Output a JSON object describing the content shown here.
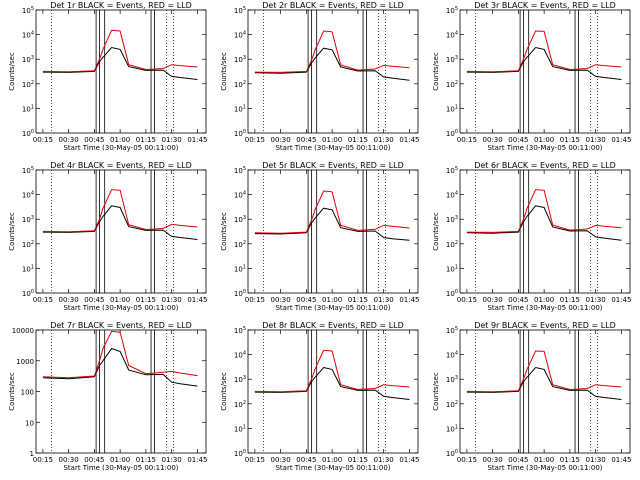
{
  "figure": {
    "xlabel": "Start Time (30-May-05 00:11:00)",
    "ylabel": "Counts/sec",
    "x_tick_labels": [
      "00:15",
      "00:30",
      "00:45",
      "01:00",
      "01:15",
      "01:30",
      "01:45"
    ],
    "event_line_color": "#000000",
    "lld_line_color": "#e00000"
  },
  "chart_data": [
    {
      "type": "line",
      "title": "Det 1r BLACK = Events, RED = LLD",
      "y_scale": "log",
      "ylim": [
        1,
        100000
      ],
      "y_tick_labels": [
        "10^0",
        "10^1",
        "10^2",
        "10^3",
        "10^4",
        "10^5"
      ],
      "xlim": [
        "00:11",
        "01:50"
      ],
      "x": [
        "00:15",
        "00:30",
        "00:45",
        "00:48",
        "00:50",
        "00:55",
        "01:00",
        "01:05",
        "01:15",
        "01:25",
        "01:30",
        "01:35",
        "01:45"
      ],
      "series": [
        {
          "name": "Events",
          "values": [
            300,
            290,
            320,
            800,
            1200,
            3000,
            2500,
            500,
            350,
            360,
            200,
            180,
            150
          ]
        },
        {
          "name": "LLD",
          "values": [
            320,
            310,
            340,
            1000,
            2500,
            15000,
            14000,
            600,
            380,
            420,
            600,
            550,
            480
          ]
        }
      ]
    },
    {
      "type": "line",
      "title": "Det 2r BLACK = Events, RED = LLD",
      "y_scale": "log",
      "ylim": [
        1,
        100000
      ],
      "y_tick_labels": [
        "10^0",
        "10^1",
        "10^2",
        "10^3",
        "10^4",
        "10^5"
      ],
      "xlim": [
        "00:11",
        "01:50"
      ],
      "x": [
        "00:15",
        "00:30",
        "00:45",
        "00:48",
        "00:50",
        "00:55",
        "01:00",
        "01:05",
        "01:15",
        "01:25",
        "01:30",
        "01:35",
        "01:45"
      ],
      "series": [
        {
          "name": "Events",
          "values": [
            280,
            270,
            300,
            700,
            1100,
            2800,
            2400,
            480,
            330,
            340,
            190,
            170,
            140
          ]
        },
        {
          "name": "LLD",
          "values": [
            300,
            290,
            320,
            900,
            2300,
            14000,
            13000,
            580,
            360,
            400,
            560,
            520,
            450
          ]
        }
      ]
    },
    {
      "type": "line",
      "title": "Det 3r BLACK = Events, RED = LLD",
      "y_scale": "log",
      "ylim": [
        1,
        100000
      ],
      "y_tick_labels": [
        "10^0",
        "10^1",
        "10^2",
        "10^3",
        "10^4",
        "10^5"
      ],
      "xlim": [
        "00:11",
        "01:50"
      ],
      "x": [
        "00:15",
        "00:30",
        "00:45",
        "00:48",
        "00:50",
        "00:55",
        "01:00",
        "01:05",
        "01:15",
        "01:25",
        "01:30",
        "01:35",
        "01:45"
      ],
      "series": [
        {
          "name": "Events",
          "values": [
            300,
            290,
            320,
            800,
            1200,
            3000,
            2500,
            500,
            350,
            360,
            200,
            180,
            150
          ]
        },
        {
          "name": "LLD",
          "values": [
            320,
            310,
            340,
            1000,
            2500,
            14000,
            13500,
            600,
            380,
            420,
            600,
            550,
            480
          ]
        }
      ]
    },
    {
      "type": "line",
      "title": "Det 4r BLACK = Events, RED = LLD",
      "y_scale": "log",
      "ylim": [
        1,
        100000
      ],
      "y_tick_labels": [
        "10^0",
        "10^1",
        "10^2",
        "10^3",
        "10^4",
        "10^5"
      ],
      "xlim": [
        "00:11",
        "01:50"
      ],
      "x": [
        "00:15",
        "00:30",
        "00:45",
        "00:48",
        "00:50",
        "00:55",
        "01:00",
        "01:05",
        "01:15",
        "01:25",
        "01:30",
        "01:35",
        "01:45"
      ],
      "series": [
        {
          "name": "Events",
          "values": [
            300,
            290,
            320,
            800,
            1300,
            3500,
            3000,
            500,
            350,
            360,
            200,
            180,
            150
          ]
        },
        {
          "name": "LLD",
          "values": [
            320,
            310,
            340,
            1000,
            2800,
            16000,
            15000,
            600,
            380,
            420,
            620,
            560,
            480
          ]
        }
      ]
    },
    {
      "type": "line",
      "title": "Det 5r BLACK = Events, RED = LLD",
      "y_scale": "log",
      "ylim": [
        1,
        100000
      ],
      "y_tick_labels": [
        "10^0",
        "10^1",
        "10^2",
        "10^3",
        "10^4",
        "10^5"
      ],
      "xlim": [
        "00:11",
        "01:50"
      ],
      "x": [
        "00:15",
        "00:30",
        "00:45",
        "00:48",
        "00:50",
        "00:55",
        "01:00",
        "01:05",
        "01:15",
        "01:25",
        "01:30",
        "01:35",
        "01:45"
      ],
      "series": [
        {
          "name": "Events",
          "values": [
            260,
            250,
            280,
            700,
            1100,
            2800,
            2400,
            450,
            320,
            330,
            180,
            160,
            140
          ]
        },
        {
          "name": "LLD",
          "values": [
            280,
            270,
            300,
            900,
            2400,
            14000,
            13000,
            560,
            350,
            390,
            560,
            520,
            440
          ]
        }
      ]
    },
    {
      "type": "line",
      "title": "Det 6r BLACK = Events, RED = LLD",
      "y_scale": "log",
      "ylim": [
        1,
        100000
      ],
      "y_tick_labels": [
        "10^0",
        "10^1",
        "10^2",
        "10^3",
        "10^4",
        "10^5"
      ],
      "xlim": [
        "00:11",
        "01:50"
      ],
      "x": [
        "00:15",
        "00:30",
        "00:45",
        "00:48",
        "00:50",
        "00:55",
        "01:00",
        "01:05",
        "01:15",
        "01:25",
        "01:30",
        "01:35",
        "01:45"
      ],
      "series": [
        {
          "name": "Events",
          "values": [
            280,
            270,
            300,
            800,
            1300,
            3500,
            3000,
            480,
            330,
            340,
            190,
            170,
            140
          ]
        },
        {
          "name": "LLD",
          "values": [
            300,
            290,
            320,
            1000,
            2700,
            16000,
            15000,
            580,
            360,
            400,
            560,
            520,
            450
          ]
        }
      ]
    },
    {
      "type": "line",
      "title": "Det 7r BLACK = Events, RED = LLD",
      "y_scale": "log",
      "ylim": [
        1,
        10000
      ],
      "y_tick_labels": [
        "1",
        "10",
        "100",
        "1000",
        "10000"
      ],
      "xlim": [
        "00:11",
        "01:50"
      ],
      "x": [
        "00:15",
        "00:30",
        "00:45",
        "00:48",
        "00:50",
        "00:55",
        "01:00",
        "01:05",
        "01:15",
        "01:25",
        "01:30",
        "01:35",
        "01:45"
      ],
      "series": [
        {
          "name": "Events",
          "values": [
            280,
            260,
            300,
            700,
            1000,
            2500,
            2000,
            500,
            350,
            360,
            200,
            180,
            150
          ]
        },
        {
          "name": "LLD",
          "values": [
            300,
            280,
            320,
            1000,
            2500,
            9000,
            8500,
            700,
            380,
            420,
            450,
            400,
            330
          ]
        }
      ]
    },
    {
      "type": "line",
      "title": "Det 8r BLACK = Events, RED = LLD",
      "y_scale": "log",
      "ylim": [
        1,
        100000
      ],
      "y_tick_labels": [
        "10^0",
        "10^1",
        "10^2",
        "10^3",
        "10^4",
        "10^5"
      ],
      "xlim": [
        "00:11",
        "01:50"
      ],
      "x": [
        "00:15",
        "00:30",
        "00:45",
        "00:48",
        "00:50",
        "00:55",
        "01:00",
        "01:05",
        "01:15",
        "01:25",
        "01:30",
        "01:35",
        "01:45"
      ],
      "series": [
        {
          "name": "Events",
          "values": [
            300,
            290,
            320,
            800,
            1200,
            3000,
            2500,
            500,
            350,
            360,
            200,
            180,
            150
          ]
        },
        {
          "name": "LLD",
          "values": [
            320,
            310,
            340,
            1000,
            2500,
            15000,
            14000,
            600,
            380,
            420,
            600,
            550,
            480
          ]
        }
      ]
    },
    {
      "type": "line",
      "title": "Det 9r BLACK = Events, RED = LLD",
      "y_scale": "log",
      "ylim": [
        1,
        100000
      ],
      "y_tick_labels": [
        "10^0",
        "10^1",
        "10^2",
        "10^3",
        "10^4",
        "10^5"
      ],
      "xlim": [
        "00:11",
        "01:50"
      ],
      "x": [
        "00:15",
        "00:30",
        "00:45",
        "00:48",
        "00:50",
        "00:55",
        "01:00",
        "01:05",
        "01:15",
        "01:25",
        "01:30",
        "01:35",
        "01:45"
      ],
      "series": [
        {
          "name": "Events",
          "values": [
            300,
            290,
            320,
            800,
            1200,
            3000,
            2500,
            500,
            350,
            360,
            200,
            180,
            150
          ]
        },
        {
          "name": "LLD",
          "values": [
            320,
            310,
            340,
            1000,
            2500,
            14000,
            13500,
            600,
            380,
            420,
            600,
            550,
            480
          ]
        }
      ]
    }
  ]
}
